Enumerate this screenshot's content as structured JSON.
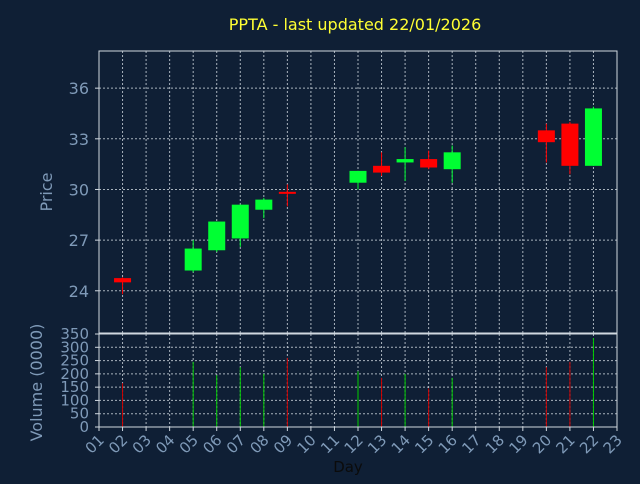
{
  "title": "PPTA - last updated 22/01/2026",
  "colors": {
    "background": "#0f1f35",
    "axis": "#d0d8e0",
    "grid": "#d0d8e0",
    "tick_label": "#7f9ab8",
    "title": "#ffff33",
    "up": "#00ff33",
    "down": "#ff0000",
    "volume_up": "#00cc00",
    "volume_down": "#cc0000"
  },
  "chart_data": [
    {
      "type": "candlestick",
      "ylabel": "Price",
      "ylim": [
        21.5,
        38.2
      ],
      "yticks": [
        24,
        27,
        30,
        33,
        36
      ],
      "x_domain": [
        1,
        23
      ],
      "grid": true,
      "candles": [
        {
          "day": "02",
          "open": 24.75,
          "high": 24.8,
          "low": 23.8,
          "close": 24.5
        },
        {
          "day": "05",
          "open": 25.2,
          "high": 27.0,
          "low": 25.1,
          "close": 26.5
        },
        {
          "day": "06",
          "open": 26.4,
          "high": 28.1,
          "low": 26.3,
          "close": 28.1
        },
        {
          "day": "07",
          "open": 27.1,
          "high": 29.1,
          "low": 26.6,
          "close": 29.1
        },
        {
          "day": "08",
          "open": 28.8,
          "high": 29.5,
          "low": 28.3,
          "close": 29.4
        },
        {
          "day": "09",
          "open": 29.8,
          "high": 30.3,
          "low": 29.0,
          "close": 29.7
        },
        {
          "day": "12",
          "open": 30.4,
          "high": 31.1,
          "low": 30.0,
          "close": 31.1
        },
        {
          "day": "13",
          "open": 31.4,
          "high": 32.2,
          "low": 30.8,
          "close": 31.0
        },
        {
          "day": "14",
          "open": 31.6,
          "high": 32.5,
          "low": 30.5,
          "close": 31.8
        },
        {
          "day": "15",
          "open": 31.8,
          "high": 32.3,
          "low": 31.2,
          "close": 31.3
        },
        {
          "day": "16",
          "open": 31.2,
          "high": 32.6,
          "low": 30.4,
          "close": 32.2
        },
        {
          "day": "20",
          "open": 33.5,
          "high": 33.9,
          "low": 31.6,
          "close": 32.8
        },
        {
          "day": "21",
          "open": 33.9,
          "high": 34.0,
          "low": 30.9,
          "close": 31.4
        },
        {
          "day": "22",
          "open": 31.4,
          "high": 34.9,
          "low": 31.4,
          "close": 34.8
        }
      ]
    },
    {
      "type": "bar",
      "ylabel": "Volume (0000)",
      "ylim": [
        0,
        350
      ],
      "yticks": [
        0,
        50,
        100,
        150,
        200,
        250,
        300,
        350
      ],
      "x_domain": [
        1,
        23
      ],
      "grid": true,
      "bars": [
        {
          "day": "02",
          "value": 165,
          "direction": "down"
        },
        {
          "day": "05",
          "value": 245,
          "direction": "up"
        },
        {
          "day": "06",
          "value": 195,
          "direction": "up"
        },
        {
          "day": "07",
          "value": 225,
          "direction": "up"
        },
        {
          "day": "08",
          "value": 200,
          "direction": "up"
        },
        {
          "day": "09",
          "value": 260,
          "direction": "down"
        },
        {
          "day": "12",
          "value": 210,
          "direction": "up"
        },
        {
          "day": "13",
          "value": 185,
          "direction": "down"
        },
        {
          "day": "14",
          "value": 200,
          "direction": "up"
        },
        {
          "day": "15",
          "value": 145,
          "direction": "down"
        },
        {
          "day": "16",
          "value": 185,
          "direction": "up"
        },
        {
          "day": "20",
          "value": 225,
          "direction": "down"
        },
        {
          "day": "21",
          "value": 245,
          "direction": "down"
        },
        {
          "day": "22",
          "value": 335,
          "direction": "up"
        }
      ]
    }
  ],
  "xlabel": "Day",
  "xticks": [
    "01",
    "02",
    "03",
    "04",
    "05",
    "06",
    "07",
    "08",
    "09",
    "10",
    "11",
    "12",
    "13",
    "14",
    "15",
    "16",
    "17",
    "18",
    "19",
    "20",
    "21",
    "22",
    "23"
  ]
}
